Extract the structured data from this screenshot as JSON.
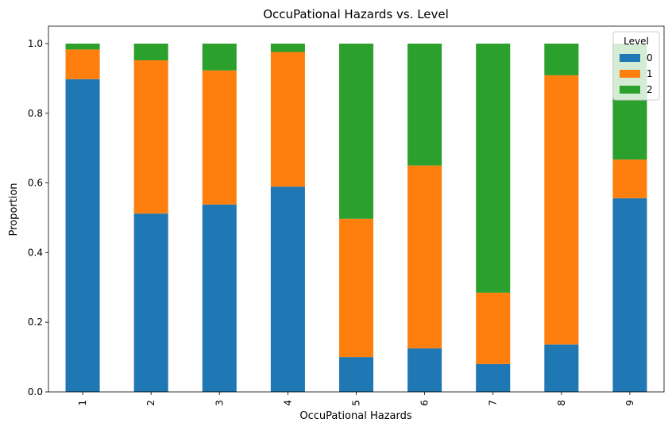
{
  "chart_data": {
    "type": "bar",
    "stacked": true,
    "title": "OccuPational Hazards vs. Level",
    "xlabel": "OccuPational Hazards",
    "ylabel": "Proportion",
    "categories": [
      "1",
      "2",
      "3",
      "4",
      "5",
      "6",
      "7",
      "8",
      "9"
    ],
    "ylim": [
      0,
      1.05
    ],
    "yticks": [
      "0.0",
      "0.2",
      "0.4",
      "0.6",
      "0.8",
      "1.0"
    ],
    "grid": false,
    "legend": {
      "title": "Level",
      "placement": "top-right"
    },
    "series": [
      {
        "name": "0",
        "color": "#1f77b4",
        "values": [
          0.898,
          0.512,
          0.538,
          0.589,
          0.1,
          0.125,
          0.08,
          0.136,
          0.556
        ]
      },
      {
        "name": "1",
        "color": "#ff7f0e",
        "values": [
          0.085,
          0.44,
          0.385,
          0.387,
          0.397,
          0.525,
          0.205,
          0.773,
          0.111
        ]
      },
      {
        "name": "2",
        "color": "#2ca02c",
        "values": [
          0.017,
          0.048,
          0.077,
          0.024,
          0.503,
          0.35,
          0.715,
          0.091,
          0.333
        ]
      }
    ]
  }
}
